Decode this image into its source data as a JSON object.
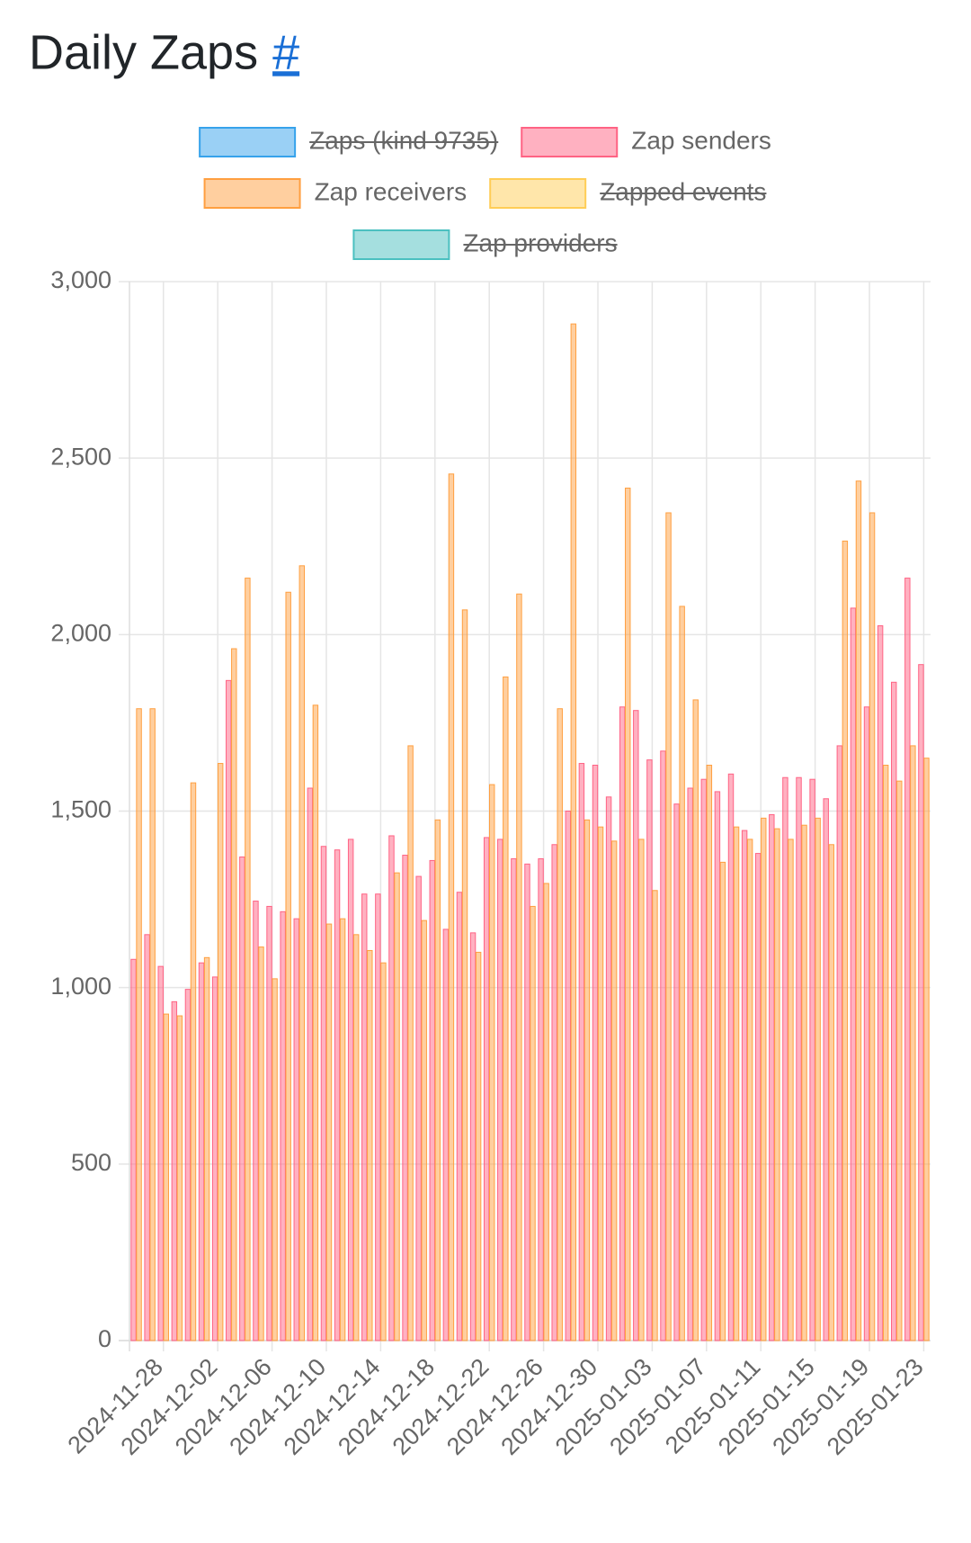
{
  "chart_data": {
    "type": "bar",
    "title": "Daily Zaps",
    "title_link": "#",
    "categories": [
      null,
      null,
      "2024-11-28",
      null,
      null,
      null,
      "2024-12-02",
      null,
      null,
      null,
      "2024-12-06",
      null,
      null,
      null,
      "2024-12-10",
      null,
      null,
      null,
      "2024-12-14",
      null,
      null,
      null,
      "2024-12-18",
      null,
      null,
      null,
      "2024-12-22",
      null,
      null,
      null,
      "2024-12-26",
      null,
      null,
      null,
      "2024-12-30",
      null,
      null,
      null,
      "2025-01-03",
      null,
      null,
      null,
      "2025-01-07",
      null,
      null,
      null,
      "2025-01-11",
      null,
      null,
      null,
      "2025-01-15",
      null,
      null,
      null,
      "2025-01-19",
      null,
      null,
      null,
      "2025-01-23"
    ],
    "series": [
      {
        "name": "Zaps (kind 9735)",
        "color": "#36a2eb",
        "hidden": true
      },
      {
        "name": "Zap senders",
        "color": "#ff6384",
        "values": [
          1080,
          1150,
          1060,
          960,
          995,
          1070,
          1030,
          1870,
          1370,
          1245,
          1230,
          1215,
          1195,
          1565,
          1400,
          1390,
          1420,
          1265,
          1265,
          1430,
          1375,
          1315,
          1360,
          1165,
          1270,
          1155,
          1425,
          1420,
          1365,
          1350,
          1365,
          1405,
          1500,
          1635,
          1630,
          1540,
          1795,
          1785,
          1645,
          1670,
          1520,
          1565,
          1590,
          1555,
          1605,
          1445,
          1380,
          1490,
          1595,
          1595,
          1590,
          1535,
          1685,
          2075,
          1795,
          2025,
          1865,
          2160,
          1915
        ]
      },
      {
        "name": "Zap receivers",
        "color": "#ff9f40",
        "values": [
          1790,
          1790,
          925,
          920,
          1580,
          1085,
          1635,
          1960,
          2160,
          1115,
          1025,
          2120,
          2195,
          1800,
          1180,
          1195,
          1150,
          1105,
          1070,
          1325,
          1685,
          1190,
          1475,
          2455,
          2070,
          1100,
          1575,
          1880,
          2115,
          1230,
          1295,
          1790,
          2880,
          1475,
          1455,
          1415,
          2415,
          1420,
          1275,
          2345,
          2080,
          1815,
          1630,
          1355,
          1455,
          1420,
          1480,
          1450,
          1420,
          1460,
          1480,
          1405,
          2265,
          2435,
          2345,
          1630,
          1585,
          1685,
          1650
        ]
      },
      {
        "name": "Zapped events",
        "color": "#ffcd56",
        "hidden": true
      },
      {
        "name": "Zap providers",
        "color": "#4bc0c0",
        "hidden": true
      }
    ],
    "ylim": [
      0,
      3000
    ],
    "yticks": [
      0,
      500,
      {
        "value": 1000,
        "label": "1,000"
      },
      {
        "value": 1500,
        "label": "1,500"
      },
      {
        "value": 2000,
        "label": "2,000"
      },
      {
        "value": 2500,
        "label": "2,500"
      },
      {
        "value": 3000,
        "label": "3,000"
      }
    ],
    "grid": true,
    "legend": "top"
  }
}
